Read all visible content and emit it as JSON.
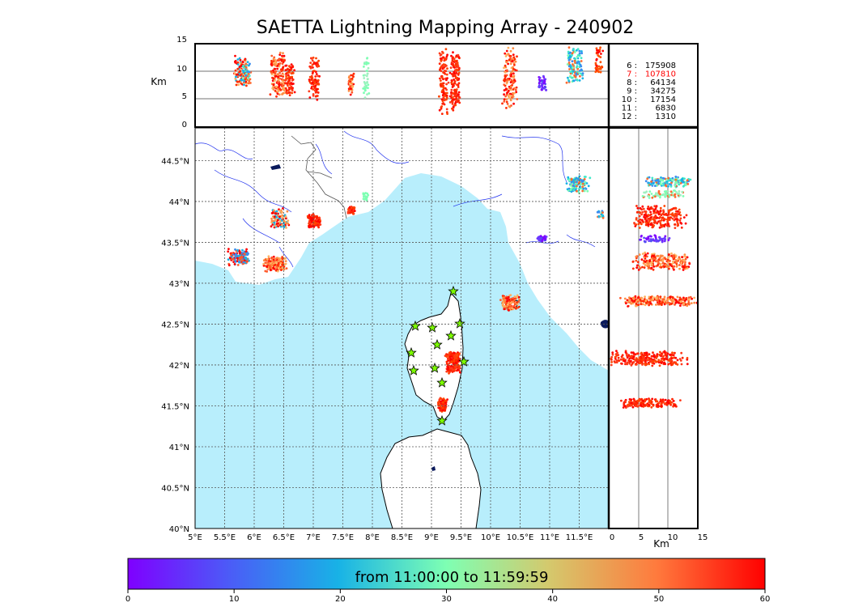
{
  "title": "SAETTA Lightning Mapping Array - 240902",
  "stats": {
    "rows": [
      {
        "label": "6 :",
        "value": "175908",
        "color": "#000000"
      },
      {
        "label": "7 :",
        "value": "107810",
        "color": "#ff0000"
      },
      {
        "label": "8 :",
        "value": "64134",
        "color": "#000000"
      },
      {
        "label": "9 :",
        "value": "34275",
        "color": "#000000"
      },
      {
        "label": "10 :",
        "value": "17154",
        "color": "#000000"
      },
      {
        "label": "11 :",
        "value": "6830",
        "color": "#000000"
      },
      {
        "label": "12 :",
        "value": "1310",
        "color": "#000000"
      }
    ]
  },
  "top_panel": {
    "ylabel": "Km",
    "yticks": [
      "0",
      "5",
      "10",
      "15"
    ]
  },
  "map": {
    "lon_ticks": [
      "5°E",
      "5.5°E",
      "6°E",
      "6.5°E",
      "7°E",
      "7.5°E",
      "8°E",
      "8.5°E",
      "9°E",
      "9.5°E",
      "10°E",
      "10.5°E",
      "11°E",
      "11.5°E"
    ],
    "lat_ticks": [
      "40°N",
      "40.5°N",
      "41°N",
      "41.5°N",
      "42°N",
      "42.5°N",
      "43°N",
      "43.5°N",
      "44°N",
      "44.5°N"
    ],
    "sea_color": "#b8eefc",
    "station_color": "#7cfc00"
  },
  "right_panel": {
    "xlabel": "Km",
    "xticks": [
      "0",
      "5",
      "10",
      "15"
    ]
  },
  "colorbar": {
    "label": "from 11:00:00 to 11:59:59",
    "ticks": [
      "0",
      "10",
      "20",
      "30",
      "40",
      "50",
      "60"
    ],
    "colormap": "rainbow"
  }
}
